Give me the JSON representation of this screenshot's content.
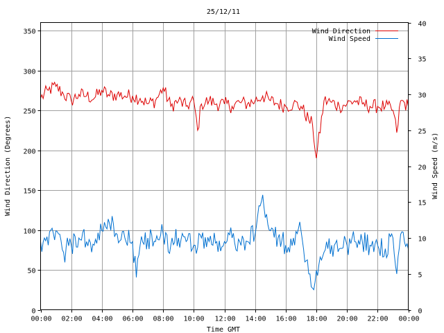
{
  "chart_data": {
    "type": "line",
    "title": "25/12/11",
    "xlabel": "Time GMT",
    "ylabel_left": "Wind Direction (Degrees)",
    "ylabel_right": "Wind Speed (m/s)",
    "x_ticks": [
      "00:00",
      "02:00",
      "04:00",
      "06:00",
      "08:00",
      "10:00",
      "12:00",
      "14:00",
      "16:00",
      "18:00",
      "20:00",
      "22:00",
      "00:00"
    ],
    "y_left_ticks": [
      0,
      50,
      100,
      150,
      200,
      250,
      300,
      350
    ],
    "y_right_ticks": [
      0,
      5,
      10,
      15,
      20,
      25,
      30,
      35,
      40
    ],
    "xlim_hours": [
      0,
      24
    ],
    "ylim_left": [
      0,
      360
    ],
    "ylim_right": [
      0,
      40
    ],
    "grid": true,
    "legend_position": "top-right",
    "series": [
      {
        "name": "Wind Direction",
        "axis": "left",
        "color": "#dd0000",
        "x_hours": [
          0,
          0.5,
          1,
          1.5,
          2,
          2.5,
          3,
          3.5,
          4,
          4.5,
          5,
          5.5,
          6,
          6.5,
          7,
          7.5,
          8,
          8.5,
          9,
          9.5,
          10,
          10.25,
          10.5,
          11,
          11.5,
          12,
          12.5,
          13,
          13.5,
          14,
          14.5,
          15,
          15.5,
          16,
          16.5,
          17,
          17.5,
          17.75,
          18,
          18.5,
          19,
          19.5,
          20,
          20.5,
          21,
          21.5,
          22,
          22.5,
          23,
          23.25,
          23.5,
          24
        ],
        "values": [
          265,
          275,
          280,
          270,
          262,
          270,
          268,
          265,
          275,
          268,
          270,
          268,
          268,
          265,
          258,
          262,
          278,
          255,
          262,
          255,
          262,
          225,
          258,
          262,
          258,
          258,
          255,
          260,
          258,
          262,
          268,
          262,
          258,
          255,
          258,
          255,
          238,
          232,
          190,
          262,
          260,
          255,
          258,
          262,
          258,
          255,
          255,
          255,
          250,
          222,
          262,
          255
        ]
      },
      {
        "name": "Wind Speed",
        "axis": "right",
        "color": "#0070d0",
        "x_hours": [
          0,
          0.25,
          0.5,
          1,
          1.5,
          2,
          2.5,
          3,
          3.5,
          4,
          4.5,
          5,
          5.5,
          6,
          6.25,
          6.5,
          7,
          7.5,
          8,
          8.5,
          9,
          9.5,
          10,
          10.5,
          11,
          11.5,
          12,
          12.5,
          13,
          13.5,
          14,
          14.5,
          15,
          15.5,
          16,
          16.5,
          17,
          17.5,
          17.75,
          18,
          18.5,
          19,
          19.5,
          20,
          20.5,
          21,
          21.5,
          22,
          22.5,
          23,
          23.25,
          23.5,
          24
        ],
        "values": [
          9.5,
          10,
          9,
          11,
          8,
          9,
          10,
          9.5,
          9,
          11,
          12,
          10.5,
          10,
          9.5,
          4.5,
          9,
          10,
          9.5,
          10.5,
          9,
          10,
          9.5,
          9,
          10,
          9.5,
          9.5,
          9.5,
          10,
          9.5,
          9.5,
          10.5,
          16,
          11,
          10,
          9,
          10,
          11,
          5,
          3,
          5.5,
          8,
          9,
          8.5,
          9,
          9.5,
          9.5,
          9,
          9,
          8.5,
          10,
          5,
          10.5,
          8.5
        ]
      }
    ]
  }
}
